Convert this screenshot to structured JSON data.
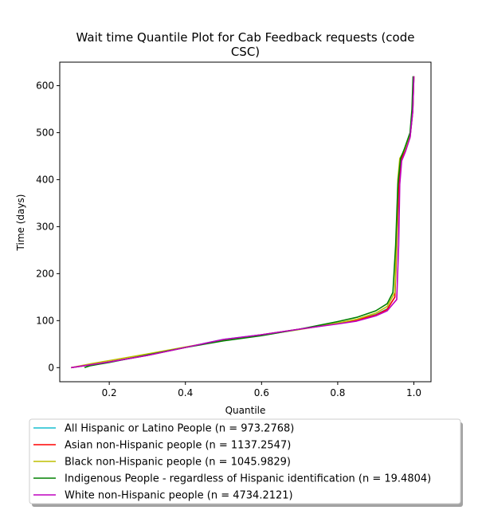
{
  "chart_data": {
    "type": "line",
    "title_line1": "Wait time Quantile Plot for Cab Feedback  requests (code",
    "title_line2": "CSC)",
    "xlabel": "Quantile",
    "ylabel": "Time (days)",
    "xlim": [
      0.07,
      1.045
    ],
    "ylim": [
      -30,
      650
    ],
    "xticks": [
      0.2,
      0.4,
      0.6,
      0.8,
      1.0
    ],
    "xtick_labels": [
      "0.2",
      "0.4",
      "0.6",
      "0.8",
      "1.0"
    ],
    "yticks": [
      0,
      100,
      200,
      300,
      400,
      500,
      600
    ],
    "ytick_labels": [
      "0",
      "100",
      "200",
      "300",
      "400",
      "500",
      "600"
    ],
    "grid": false,
    "legend_position": "below",
    "series": [
      {
        "name": "All Hispanic or Latino People (n = 973.2768)",
        "color": "#17becf",
        "x": [
          0.1,
          0.15,
          0.2,
          0.3,
          0.4,
          0.5,
          0.6,
          0.7,
          0.8,
          0.85,
          0.9,
          0.93,
          0.95,
          0.955,
          0.96,
          0.965,
          0.975,
          0.99,
          0.997,
          1.0
        ],
        "y": [
          0,
          6,
          12,
          26,
          43,
          60,
          70,
          82,
          95,
          102,
          113,
          125,
          150,
          250,
          380,
          440,
          460,
          490,
          545,
          620
        ]
      },
      {
        "name": "Asian non-Hispanic people (n = 1137.2547)",
        "color": "#ff0000",
        "x": [
          0.1,
          0.15,
          0.2,
          0.3,
          0.4,
          0.5,
          0.6,
          0.7,
          0.8,
          0.85,
          0.9,
          0.93,
          0.95,
          0.955,
          0.96,
          0.965,
          0.975,
          0.99,
          0.997,
          1.0
        ],
        "y": [
          0,
          6,
          12,
          26,
          43,
          59,
          70,
          82,
          94,
          101,
          112,
          124,
          150,
          260,
          385,
          440,
          458,
          490,
          545,
          620
        ]
      },
      {
        "name": "Black non-Hispanic people (n = 1045.9829)",
        "color": "#bfbf00",
        "x": [
          0.1,
          0.15,
          0.2,
          0.3,
          0.4,
          0.5,
          0.6,
          0.7,
          0.8,
          0.85,
          0.9,
          0.93,
          0.95,
          0.955,
          0.958,
          0.963,
          0.975,
          0.99,
          0.997,
          1.0
        ],
        "y": [
          0,
          8,
          15,
          29,
          44,
          58,
          69,
          81,
          95,
          103,
          116,
          130,
          160,
          280,
          400,
          445,
          462,
          495,
          550,
          620
        ]
      },
      {
        "name": "Indigenous People - regardless of Hispanic identification (n = 19.4804)",
        "color": "#008000",
        "x": [
          0.135,
          0.15,
          0.2,
          0.3,
          0.4,
          0.5,
          0.6,
          0.7,
          0.8,
          0.85,
          0.9,
          0.93,
          0.945,
          0.952,
          0.958,
          0.965,
          0.975,
          0.99,
          0.995,
          0.998
        ],
        "y": [
          0,
          4,
          11,
          27,
          43,
          57,
          68,
          82,
          98,
          107,
          121,
          136,
          160,
          260,
          390,
          445,
          465,
          500,
          550,
          620
        ]
      },
      {
        "name": "White non-Hispanic people (n = 4734.2121)",
        "color": "#bf00bf",
        "x": [
          0.1,
          0.15,
          0.2,
          0.3,
          0.4,
          0.5,
          0.6,
          0.7,
          0.8,
          0.85,
          0.9,
          0.93,
          0.955,
          0.96,
          0.963,
          0.968,
          0.978,
          0.99,
          0.997,
          1.0
        ],
        "y": [
          0,
          6,
          12,
          26,
          43,
          60,
          70,
          82,
          93,
          99,
          110,
          121,
          145,
          260,
          390,
          440,
          460,
          490,
          545,
          620
        ]
      }
    ]
  }
}
